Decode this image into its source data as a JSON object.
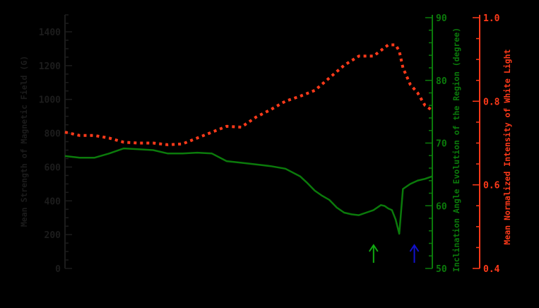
{
  "chart_data": {
    "type": "line",
    "title": "",
    "xlabel": "",
    "background": "#000000",
    "axes": {
      "left": {
        "label": "Mean Strength of Magnetic Field (G)",
        "ticks": [
          "0",
          "200",
          "400",
          "600",
          "800",
          "1000",
          "1200",
          "1400"
        ],
        "range": [
          0,
          1500
        ],
        "color": "#1c1c1c"
      },
      "right_inner": {
        "label": "Inclination Angle Evolution of the Region (degree)",
        "ticks": [
          "50",
          "60",
          "70",
          "80",
          "90"
        ],
        "range": [
          50,
          90
        ],
        "color": "#0b7a0b"
      },
      "right_outer": {
        "label": "Mean Normalized Intensity of White Light",
        "ticks": [
          "0.4",
          "0.6",
          "0.8",
          "1.0"
        ],
        "range": [
          0.4,
          1.0
        ],
        "color": "#ff3a1a"
      }
    },
    "series": [
      {
        "name": "Mean Strength of Magnetic Field",
        "axis": "left",
        "style": "solid",
        "color": "#0b7a0b",
        "x": [
          0,
          4,
          8,
          12,
          16,
          20,
          24,
          28,
          32,
          36,
          40,
          44,
          48,
          52,
          56,
          60,
          64,
          66,
          68,
          70,
          72,
          74,
          76,
          78,
          80,
          82,
          84,
          86,
          87,
          88,
          89,
          90,
          91,
          92,
          94,
          96,
          98,
          100
        ],
        "values": [
          665,
          655,
          655,
          680,
          710,
          705,
          700,
          680,
          680,
          685,
          680,
          635,
          625,
          615,
          605,
          590,
          545,
          505,
          460,
          430,
          405,
          360,
          330,
          320,
          315,
          330,
          345,
          375,
          370,
          355,
          345,
          290,
          205,
          470,
          500,
          520,
          530,
          545
        ]
      },
      {
        "name": "Mean Normalized Intensity of White Light",
        "axis": "right_outer",
        "style": "dotted",
        "color": "#ff3a1a",
        "x": [
          0,
          4,
          8,
          12,
          16,
          20,
          24,
          28,
          32,
          36,
          40,
          44,
          48,
          52,
          56,
          60,
          64,
          68,
          72,
          76,
          80,
          84,
          88,
          90,
          91,
          92,
          94,
          96,
          98,
          100
        ],
        "values": [
          0.726,
          0.718,
          0.718,
          0.712,
          0.702,
          0.7,
          0.7,
          0.696,
          0.698,
          0.712,
          0.726,
          0.74,
          0.738,
          0.762,
          0.78,
          0.8,
          0.812,
          0.826,
          0.856,
          0.886,
          0.908,
          0.908,
          0.935,
          0.935,
          0.92,
          0.88,
          0.84,
          0.82,
          0.79,
          0.778
        ]
      }
    ],
    "annotations": [
      {
        "type": "arrow",
        "direction": "up",
        "color": "#11aa11",
        "x_frac": 0.84
      },
      {
        "type": "arrow",
        "direction": "up",
        "color": "#1111cc",
        "x_frac": 0.951
      }
    ],
    "grid": false,
    "legend": "none"
  }
}
